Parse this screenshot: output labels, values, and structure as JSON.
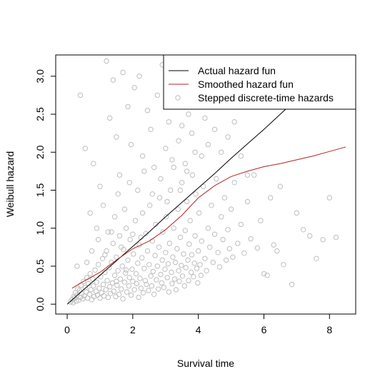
{
  "chart_data": {
    "type": "scatter",
    "title": "",
    "xlabel": "Survival time",
    "ylabel": "Weibull hazard",
    "xlim": [
      -0.35,
      8.8
    ],
    "ylim": [
      -0.13,
      3.28
    ],
    "x_ticks": [
      0,
      2,
      4,
      6,
      8
    ],
    "x_tick_labels": [
      "0",
      "2",
      "4",
      "6",
      "8"
    ],
    "y_ticks": [
      0.0,
      0.5,
      1.0,
      1.5,
      2.0,
      2.5,
      3.0
    ],
    "y_tick_labels": [
      "0.0",
      "0.5",
      "1.0",
      "1.5",
      "2.0",
      "2.5",
      "3.0"
    ],
    "grid": false,
    "legend_position": "top-right",
    "legend": [
      {
        "label": "Actual hazard fun",
        "kind": "line",
        "color": "#000000"
      },
      {
        "label": "Smoothed hazard fun",
        "kind": "line",
        "color": "#b22222"
      },
      {
        "label": "Stepped discrete-time hazards",
        "kind": "point",
        "color": "#bebebe"
      }
    ],
    "series": [
      {
        "name": "Actual hazard fun",
        "kind": "line",
        "color": "#000000",
        "x": [
          0.0,
          0.5,
          1.0,
          1.5,
          2.0,
          2.5,
          3.0,
          3.5,
          4.0,
          4.5,
          5.0,
          5.5,
          6.0,
          6.5,
          6.9
        ],
        "y": [
          0.0,
          0.19,
          0.38,
          0.57,
          0.76,
          0.95,
          1.15,
          1.34,
          1.53,
          1.72,
          1.92,
          2.11,
          2.3,
          2.5,
          2.66
        ]
      },
      {
        "name": "Smoothed hazard fun",
        "kind": "line",
        "color": "#b22222",
        "x": [
          0.15,
          0.5,
          1.0,
          1.5,
          2.0,
          2.5,
          3.0,
          3.5,
          4.0,
          4.5,
          5.0,
          5.5,
          6.0,
          6.5,
          7.0,
          7.5,
          8.0,
          8.5
        ],
        "y": [
          0.21,
          0.3,
          0.42,
          0.58,
          0.73,
          0.83,
          0.98,
          1.17,
          1.4,
          1.56,
          1.68,
          1.75,
          1.81,
          1.85,
          1.9,
          1.95,
          2.01,
          2.07
        ]
      },
      {
        "name": "Stepped discrete-time hazards",
        "kind": "points",
        "color": "#bebebe",
        "points": [
          [
            0.1,
            0.03
          ],
          [
            0.15,
            0.06
          ],
          [
            0.18,
            0.02
          ],
          [
            0.2,
            0.1
          ],
          [
            0.22,
            0.08
          ],
          [
            0.25,
            0.15
          ],
          [
            0.28,
            0.04
          ],
          [
            0.3,
            0.12
          ],
          [
            0.32,
            0.2
          ],
          [
            0.35,
            0.05
          ],
          [
            0.38,
            0.18
          ],
          [
            0.4,
            0.09
          ],
          [
            0.42,
            0.25
          ],
          [
            0.45,
            0.14
          ],
          [
            0.48,
            0.07
          ],
          [
            0.5,
            0.3
          ],
          [
            0.52,
            0.11
          ],
          [
            0.55,
            0.22
          ],
          [
            0.58,
            0.16
          ],
          [
            0.6,
            0.35
          ],
          [
            0.62,
            0.08
          ],
          [
            0.65,
            0.27
          ],
          [
            0.68,
            0.13
          ],
          [
            0.7,
            0.4
          ],
          [
            0.72,
            0.19
          ],
          [
            0.75,
            0.06
          ],
          [
            0.78,
            0.33
          ],
          [
            0.8,
            0.24
          ],
          [
            0.82,
            0.1
          ],
          [
            0.85,
            0.45
          ],
          [
            0.88,
            0.17
          ],
          [
            0.9,
            0.29
          ],
          [
            0.92,
            0.12
          ],
          [
            0.95,
            0.52
          ],
          [
            0.98,
            0.21
          ],
          [
            1.0,
            0.08
          ],
          [
            1.02,
            0.36
          ],
          [
            1.05,
            0.15
          ],
          [
            1.08,
            0.6
          ],
          [
            1.1,
            0.26
          ],
          [
            1.12,
            0.11
          ],
          [
            1.15,
            0.42
          ],
          [
            1.18,
            0.19
          ],
          [
            1.2,
            0.7
          ],
          [
            1.22,
            0.31
          ],
          [
            1.25,
            0.09
          ],
          [
            1.28,
            0.48
          ],
          [
            1.3,
            0.23
          ],
          [
            1.32,
            0.14
          ],
          [
            1.35,
            0.55
          ],
          [
            1.38,
            0.28
          ],
          [
            1.4,
            0.8
          ],
          [
            1.42,
            0.17
          ],
          [
            1.45,
            0.38
          ],
          [
            1.48,
            0.1
          ],
          [
            1.5,
            0.62
          ],
          [
            1.52,
            0.25
          ],
          [
            1.55,
            0.44
          ],
          [
            1.58,
            0.13
          ],
          [
            1.6,
            0.9
          ],
          [
            1.62,
            0.33
          ],
          [
            1.65,
            0.2
          ],
          [
            1.68,
            0.5
          ],
          [
            1.7,
            0.07
          ],
          [
            1.72,
            0.72
          ],
          [
            1.75,
            0.29
          ],
          [
            1.78,
            0.41
          ],
          [
            1.8,
            1.0
          ],
          [
            1.82,
            0.16
          ],
          [
            1.85,
            0.58
          ],
          [
            1.88,
            0.24
          ],
          [
            1.9,
            0.35
          ],
          [
            1.92,
            0.85
          ],
          [
            1.95,
            0.12
          ],
          [
            1.98,
            0.46
          ],
          [
            2.0,
            0.3
          ],
          [
            2.02,
            0.66
          ],
          [
            2.05,
            0.19
          ],
          [
            2.08,
            1.1
          ],
          [
            2.1,
            0.4
          ],
          [
            2.12,
            0.27
          ],
          [
            2.15,
            0.54
          ],
          [
            2.18,
            0.09
          ],
          [
            2.2,
            0.78
          ],
          [
            2.22,
            0.34
          ],
          [
            2.25,
            0.21
          ],
          [
            2.28,
            0.61
          ],
          [
            2.3,
            1.2
          ],
          [
            2.32,
            0.15
          ],
          [
            2.35,
            0.47
          ],
          [
            2.38,
            0.31
          ],
          [
            2.4,
            0.93
          ],
          [
            2.42,
            0.26
          ],
          [
            2.45,
            0.7
          ],
          [
            2.48,
            0.18
          ],
          [
            2.5,
            0.52
          ],
          [
            2.52,
            1.3
          ],
          [
            2.55,
            0.37
          ],
          [
            2.58,
            0.24
          ],
          [
            2.6,
            0.83
          ],
          [
            2.62,
            0.43
          ],
          [
            2.65,
            0.13
          ],
          [
            2.68,
            0.64
          ],
          [
            2.7,
            1.05
          ],
          [
            2.72,
            0.32
          ],
          [
            2.75,
            0.5
          ],
          [
            2.78,
            0.2
          ],
          [
            2.8,
            0.75
          ],
          [
            2.82,
            1.4
          ],
          [
            2.85,
            0.39
          ],
          [
            2.88,
            0.28
          ],
          [
            2.9,
            0.58
          ],
          [
            2.92,
            0.95
          ],
          [
            2.95,
            0.22
          ],
          [
            2.98,
            0.46
          ],
          [
            3.0,
            0.68
          ],
          [
            3.02,
            1.15
          ],
          [
            3.05,
            0.35
          ],
          [
            3.08,
            0.53
          ],
          [
            3.1,
            0.16
          ],
          [
            3.12,
            0.8
          ],
          [
            3.15,
            1.5
          ],
          [
            3.18,
            0.42
          ],
          [
            3.2,
            0.27
          ],
          [
            3.22,
            0.62
          ],
          [
            3.25,
            1.0
          ],
          [
            3.28,
            0.33
          ],
          [
            3.3,
            0.55
          ],
          [
            3.32,
            0.19
          ],
          [
            3.35,
            0.73
          ],
          [
            3.38,
            1.25
          ],
          [
            3.4,
            0.44
          ],
          [
            3.42,
            0.3
          ],
          [
            3.45,
            0.88
          ],
          [
            3.48,
            0.51
          ],
          [
            3.5,
            1.6
          ],
          [
            3.52,
            0.37
          ],
          [
            3.55,
            0.66
          ],
          [
            3.58,
            0.24
          ],
          [
            3.6,
            0.97
          ],
          [
            3.62,
            0.48
          ],
          [
            3.65,
            1.35
          ],
          [
            3.68,
            0.58
          ],
          [
            3.7,
            0.31
          ],
          [
            3.72,
            0.79
          ],
          [
            3.75,
            1.1
          ],
          [
            3.78,
            0.42
          ],
          [
            3.8,
            0.65
          ],
          [
            3.82,
            1.7
          ],
          [
            3.85,
            0.36
          ],
          [
            3.88,
            0.54
          ],
          [
            3.9,
            0.9
          ],
          [
            3.92,
            1.45
          ],
          [
            3.95,
            0.47
          ],
          [
            3.98,
            0.28
          ],
          [
            4.0,
            0.7
          ],
          [
            4.02,
            1.2
          ],
          [
            4.05,
            0.52
          ],
          [
            4.08,
            0.38
          ],
          [
            4.1,
            0.83
          ],
          [
            4.15,
            1.55
          ],
          [
            4.2,
            0.6
          ],
          [
            4.25,
            0.44
          ],
          [
            4.3,
            1.0
          ],
          [
            4.35,
            0.75
          ],
          [
            4.4,
            1.3
          ],
          [
            4.45,
            0.55
          ],
          [
            4.5,
            0.92
          ],
          [
            4.55,
            1.65
          ],
          [
            4.6,
            0.68
          ],
          [
            4.65,
            0.49
          ],
          [
            4.7,
            1.15
          ],
          [
            4.75,
            0.85
          ],
          [
            4.8,
            1.4
          ],
          [
            4.85,
            0.58
          ],
          [
            4.9,
            0.98
          ],
          [
            4.95,
            0.73
          ],
          [
            5.0,
            1.25
          ],
          [
            5.05,
            0.62
          ],
          [
            5.1,
            1.6
          ],
          [
            5.2,
            0.8
          ],
          [
            5.3,
            1.05
          ],
          [
            5.4,
            0.67
          ],
          [
            5.5,
            1.35
          ],
          [
            5.6,
            0.86
          ],
          [
            5.7,
            1.7
          ],
          [
            5.8,
            0.74
          ],
          [
            5.9,
            1.1
          ],
          [
            6.0,
            0.4
          ],
          [
            6.1,
            0.38
          ],
          [
            6.2,
            1.4
          ],
          [
            6.3,
            0.78
          ],
          [
            6.4,
            0.7
          ],
          [
            6.5,
            1.55
          ],
          [
            6.6,
            0.52
          ],
          [
            6.85,
            0.26
          ],
          [
            7.0,
            1.2
          ],
          [
            7.2,
            0.98
          ],
          [
            7.4,
            0.9
          ],
          [
            7.6,
            0.6
          ],
          [
            7.8,
            0.85
          ],
          [
            8.0,
            1.4
          ],
          [
            8.2,
            0.88
          ],
          [
            0.3,
            0.5
          ],
          [
            0.4,
            2.75
          ],
          [
            0.55,
            2.05
          ],
          [
            0.8,
            1.85
          ],
          [
            1.0,
            1.55
          ],
          [
            1.2,
            3.2
          ],
          [
            1.3,
            2.45
          ],
          [
            1.4,
            2.95
          ],
          [
            1.5,
            2.2
          ],
          [
            1.6,
            1.7
          ],
          [
            1.7,
            3.05
          ],
          [
            1.85,
            2.6
          ],
          [
            1.95,
            2.1
          ],
          [
            2.05,
            2.85
          ],
          [
            2.2,
            3.0
          ],
          [
            2.3,
            1.95
          ],
          [
            2.45,
            2.55
          ],
          [
            2.55,
            2.3
          ],
          [
            2.65,
            1.8
          ],
          [
            2.75,
            2.75
          ],
          [
            2.9,
            3.15
          ],
          [
            3.0,
            2.05
          ],
          [
            3.1,
            2.4
          ],
          [
            3.2,
            1.9
          ],
          [
            3.3,
            2.65
          ],
          [
            3.4,
            2.15
          ],
          [
            3.5,
            2.35
          ],
          [
            3.6,
            1.85
          ],
          [
            3.7,
            2.5
          ],
          [
            3.8,
            2.25
          ],
          [
            3.9,
            2.0
          ],
          [
            4.0,
            2.6
          ],
          [
            4.1,
            1.95
          ],
          [
            4.2,
            2.45
          ],
          [
            4.3,
            2.1
          ],
          [
            4.5,
            2.3
          ],
          [
            4.7,
            2.0
          ],
          [
            4.9,
            2.2
          ],
          [
            5.1,
            2.4
          ],
          [
            5.3,
            1.95
          ],
          [
            5.5,
            1.7
          ],
          [
            0.7,
            1.2
          ],
          [
            0.9,
            1.0
          ],
          [
            1.1,
            1.3
          ],
          [
            1.25,
            0.95
          ],
          [
            1.45,
            1.15
          ],
          [
            1.55,
            1.45
          ],
          [
            1.75,
            1.25
          ],
          [
            1.9,
            1.6
          ],
          [
            2.15,
            1.5
          ],
          [
            2.35,
            1.75
          ],
          [
            2.6,
            1.45
          ],
          [
            2.85,
            1.65
          ],
          [
            3.05,
            1.35
          ],
          [
            3.25,
            1.8
          ],
          [
            3.45,
            1.5
          ],
          [
            3.65,
            1.75
          ],
          [
            0.6,
            0.55
          ],
          [
            0.75,
            0.7
          ],
          [
            0.95,
            0.85
          ],
          [
            1.15,
            0.65
          ],
          [
            1.35,
            0.95
          ],
          [
            1.5,
            0.3
          ],
          [
            1.65,
            0.75
          ],
          [
            1.8,
            0.45
          ],
          [
            2.0,
            0.92
          ],
          [
            2.25,
            0.88
          ]
        ]
      }
    ]
  }
}
